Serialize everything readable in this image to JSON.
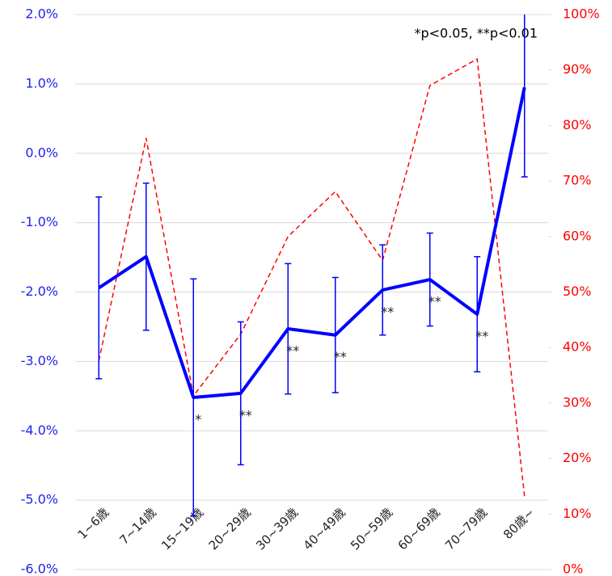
{
  "chart_data": {
    "type": "line",
    "annotation": "*p<0.05, **p<0.01",
    "categories": [
      "1~6歳",
      "7~14歳",
      "15~19歳",
      "20~29歳",
      "30~39歳",
      "40~49歳",
      "50~59歳",
      "60~69歳",
      "70~79歳",
      "80歳~"
    ],
    "series": [
      {
        "color": "#0000ff",
        "axis": "y",
        "values": [
          -1.94,
          -1.49,
          -3.52,
          -3.46,
          -2.53,
          -2.62,
          -1.97,
          -1.82,
          -2.32,
          0.95
        ],
        "errors": [
          1.31,
          1.06,
          1.71,
          1.03,
          0.94,
          0.83,
          0.65,
          0.67,
          0.83,
          1.29
        ],
        "significance": [
          null,
          null,
          "*",
          "**",
          "**",
          "**",
          "**",
          "**",
          "**",
          null
        ]
      },
      {
        "color": "#ff0000",
        "axis": "y2",
        "dashed": true,
        "values": [
          37.6,
          77.7,
          31.3,
          42.4,
          60.0,
          68.1,
          55.7,
          87.2,
          92.0,
          13.2
        ]
      }
    ],
    "ylim": [
      -6,
      2
    ],
    "yticks": [
      {
        "value": -6,
        "label": "-6.0%"
      },
      {
        "value": -5,
        "label": "-5.0%"
      },
      {
        "value": -4,
        "label": "-4.0%"
      },
      {
        "value": -3,
        "label": "-3.0%"
      },
      {
        "value": -2,
        "label": "-2.0%"
      },
      {
        "value": -1,
        "label": "-1.0%"
      },
      {
        "value": 0,
        "label": "0.0%"
      },
      {
        "value": 1,
        "label": "1.0%"
      },
      {
        "value": 2,
        "label": "2.0%"
      }
    ],
    "y2lim": [
      0,
      100
    ],
    "y2ticks": [
      {
        "value": 0,
        "label": "0%"
      },
      {
        "value": 10,
        "label": "10%"
      },
      {
        "value": 20,
        "label": "20%"
      },
      {
        "value": 30,
        "label": "30%"
      },
      {
        "value": 40,
        "label": "40%"
      },
      {
        "value": 50,
        "label": "50%"
      },
      {
        "value": 60,
        "label": "60%"
      },
      {
        "value": 70,
        "label": "70%"
      },
      {
        "value": 80,
        "label": "80%"
      },
      {
        "value": 90,
        "label": "90%"
      },
      {
        "value": 100,
        "label": "100%"
      }
    ],
    "grid": true,
    "y_color": "#2222ee",
    "y2_color": "#ff0000"
  }
}
